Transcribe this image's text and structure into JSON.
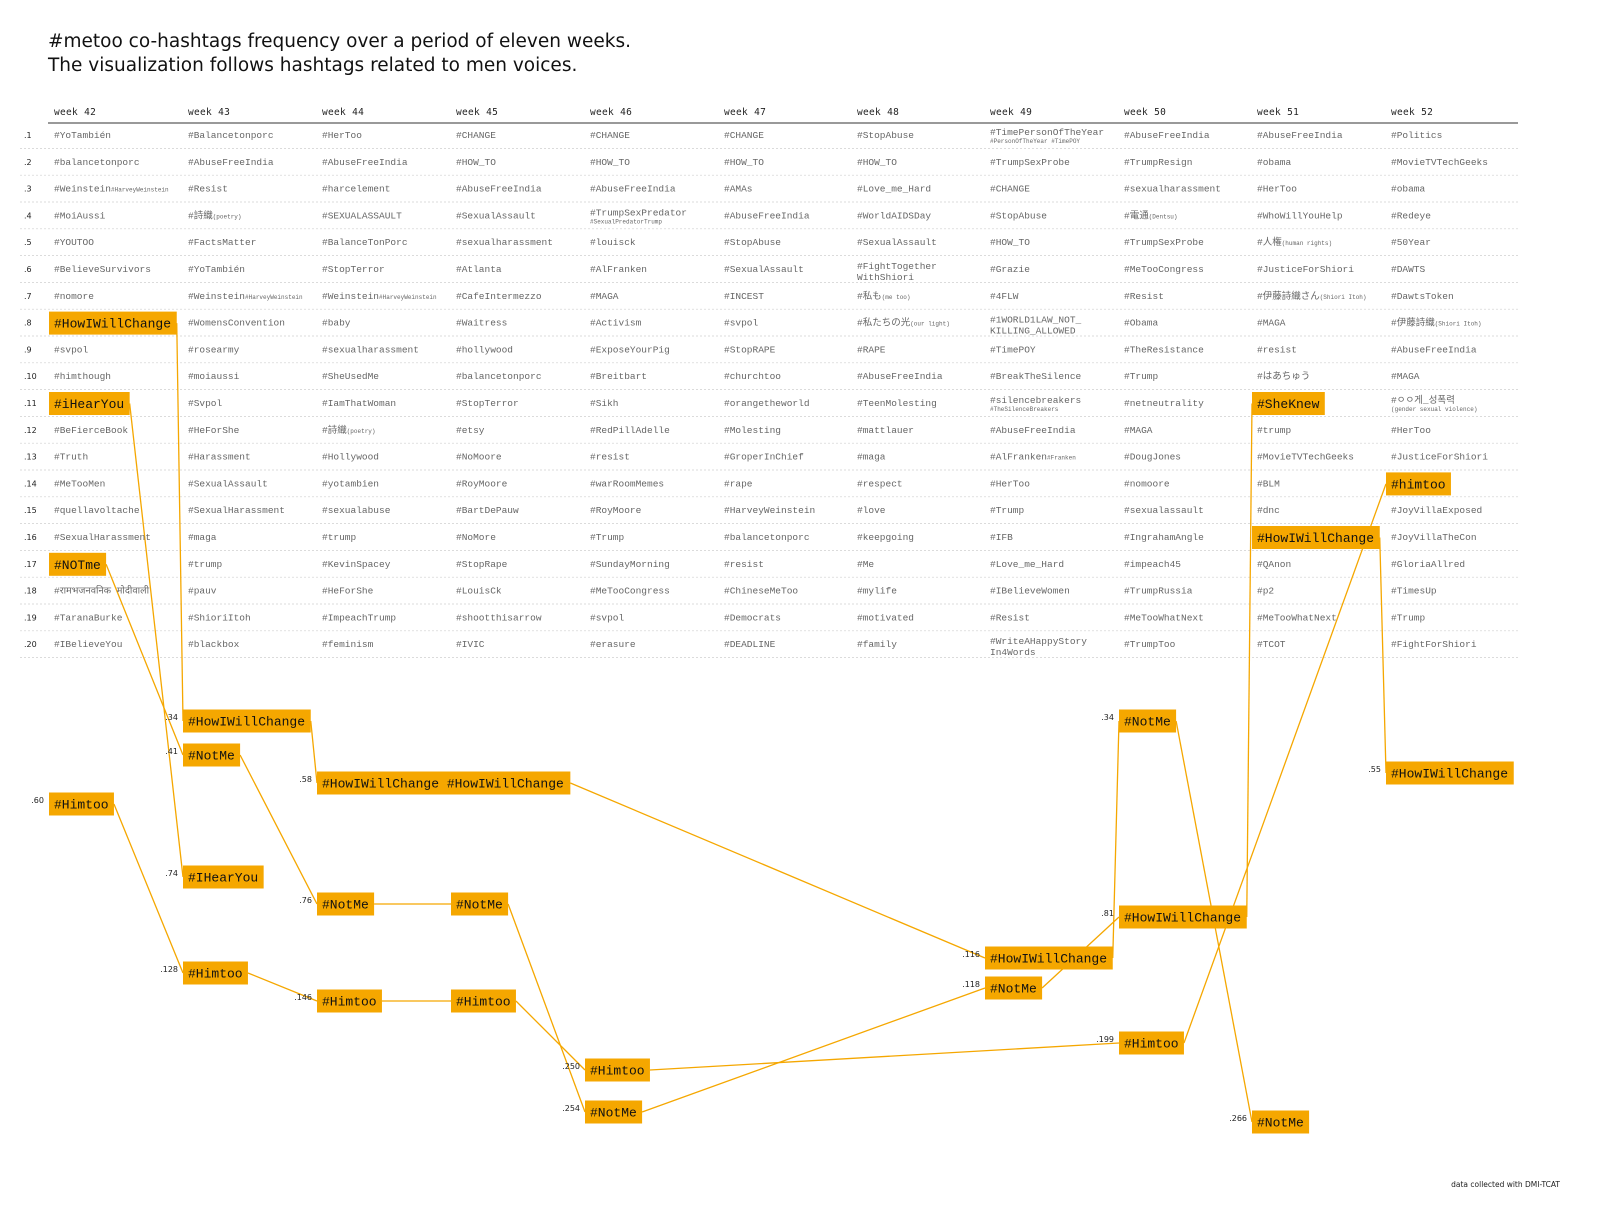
{
  "title_lines": [
    "#metoo co-hashtags frequency over a period of eleven weeks.",
    "The visualization follows hashtags related to men voices."
  ],
  "credit": "data collected with DMI-TCAT",
  "accent_color": "#f5a700",
  "chart_data": {
    "type": "table",
    "weeks": [
      "week 42",
      "week 43",
      "week 44",
      "week 45",
      "week 46",
      "week 47",
      "week 48",
      "week 49",
      "week 50",
      "week 51",
      "week 52"
    ],
    "rank_labels": [
      ".1",
      ".2",
      ".3",
      ".4",
      ".5",
      ".6",
      ".7",
      ".8",
      ".9",
      ".10",
      ".11",
      ".12",
      ".13",
      ".14",
      ".15",
      ".16",
      ".17",
      ".18",
      ".19",
      ".20"
    ],
    "columns": [
      [
        {
          "t": "#YoTambién"
        },
        {
          "t": "#balancetonporc"
        },
        {
          "t": "#Weinstein",
          "s": "#HarveyWeinstein"
        },
        {
          "t": "#MoiAussi"
        },
        {
          "t": "#YOUTOO"
        },
        {
          "t": "#BelieveSurvivors"
        },
        {
          "t": "#nomore"
        },
        {
          "t": "#HowIWillChange",
          "hl": true
        },
        {
          "t": "#svpol"
        },
        {
          "t": "#himthough"
        },
        {
          "t": "#iHearYou",
          "hl": true
        },
        {
          "t": "#BeFierceBook"
        },
        {
          "t": "#Truth"
        },
        {
          "t": "#MeTooMen"
        },
        {
          "t": "#quellavoltache"
        },
        {
          "t": "#SexualHarassment"
        },
        {
          "t": "#NOTme",
          "hl": true
        },
        {
          "t": "#रामभजनवनिक मोदीवाली"
        },
        {
          "t": "#TaranaBurke"
        },
        {
          "t": "#IBelieveYou"
        }
      ],
      [
        {
          "t": "#Balancetonporc"
        },
        {
          "t": "#AbuseFreeIndia"
        },
        {
          "t": "#Resist"
        },
        {
          "t": "#詩織",
          "s": "(poetry)"
        },
        {
          "t": "#FactsMatter"
        },
        {
          "t": "#YoTambién"
        },
        {
          "t": "#Weinstein",
          "s": "#HarveyWeinstein"
        },
        {
          "t": "#WomensConvention"
        },
        {
          "t": "#rosearmy"
        },
        {
          "t": "#moiaussi"
        },
        {
          "t": "#Svpol"
        },
        {
          "t": "#HeForShe"
        },
        {
          "t": "#Harassment"
        },
        {
          "t": "#SexualAssault"
        },
        {
          "t": "#SexualHarassment"
        },
        {
          "t": "#maga"
        },
        {
          "t": "#trump"
        },
        {
          "t": "#pauv"
        },
        {
          "t": "#ShioriItoh"
        },
        {
          "t": "#blackbox"
        }
      ],
      [
        {
          "t": "#HerToo"
        },
        {
          "t": "#AbuseFreeIndia"
        },
        {
          "t": "#harcelement"
        },
        {
          "t": "#SEXUALASSAULT"
        },
        {
          "t": "#BalanceTonPorc"
        },
        {
          "t": "#StopTerror"
        },
        {
          "t": "#Weinstein",
          "s": "#HarveyWeinstein"
        },
        {
          "t": "#baby"
        },
        {
          "t": "#sexualharassment"
        },
        {
          "t": "#SheUsedMe"
        },
        {
          "t": "#IamThatWoman"
        },
        {
          "t": "#詩織",
          "s": "(poetry)"
        },
        {
          "t": "#Hollywood"
        },
        {
          "t": "#yotambien"
        },
        {
          "t": "#sexualabuse"
        },
        {
          "t": "#trump"
        },
        {
          "t": "#KevinSpacey"
        },
        {
          "t": "#HeForShe"
        },
        {
          "t": "#ImpeachTrump"
        },
        {
          "t": "#feminism"
        }
      ],
      [
        {
          "t": "#CHANGE"
        },
        {
          "t": "#HOW_TO"
        },
        {
          "t": "#AbuseFreeIndia"
        },
        {
          "t": "#SexualAssault"
        },
        {
          "t": "#sexualharassment"
        },
        {
          "t": "#Atlanta"
        },
        {
          "t": "#CafeIntermezzo"
        },
        {
          "t": "#Waitress"
        },
        {
          "t": "#hollywood"
        },
        {
          "t": "#balancetonporc"
        },
        {
          "t": "#StopTerror"
        },
        {
          "t": "#etsy"
        },
        {
          "t": "#NoMoore"
        },
        {
          "t": "#RoyMoore"
        },
        {
          "t": "#BartDePauw"
        },
        {
          "t": "#NoMore"
        },
        {
          "t": "#StopRape"
        },
        {
          "t": "#LouisCk"
        },
        {
          "t": "#shootthisarrow"
        },
        {
          "t": "#IVIC"
        }
      ],
      [
        {
          "t": "#CHANGE"
        },
        {
          "t": "#HOW_TO"
        },
        {
          "t": "#AbuseFreeIndia"
        },
        {
          "t": "#TrumpSexPredator",
          "s2": "#SexualPredatorTrump"
        },
        {
          "t": "#louisck"
        },
        {
          "t": "#AlFranken"
        },
        {
          "t": "#MAGA"
        },
        {
          "t": "#Activism"
        },
        {
          "t": "#ExposeYourPig"
        },
        {
          "t": "#Breitbart"
        },
        {
          "t": "#Sikh"
        },
        {
          "t": "#RedPillAdelle"
        },
        {
          "t": "#resist"
        },
        {
          "t": "#warRoomMemes"
        },
        {
          "t": "#RoyMoore"
        },
        {
          "t": "#Trump"
        },
        {
          "t": "#SundayMorning"
        },
        {
          "t": "#MeTooCongress"
        },
        {
          "t": "#svpol"
        },
        {
          "t": "#erasure"
        }
      ],
      [
        {
          "t": "#CHANGE"
        },
        {
          "t": "#HOW_TO"
        },
        {
          "t": "#AMAs"
        },
        {
          "t": "#AbuseFreeIndia"
        },
        {
          "t": "#StopAbuse"
        },
        {
          "t": "#SexualAssault"
        },
        {
          "t": "#INCEST"
        },
        {
          "t": "#svpol"
        },
        {
          "t": "#StopRAPE"
        },
        {
          "t": "#churchtoo"
        },
        {
          "t": "#orangetheworld"
        },
        {
          "t": "#Molesting"
        },
        {
          "t": "#GroperInChief"
        },
        {
          "t": "#rape"
        },
        {
          "t": "#HarveyWeinstein"
        },
        {
          "t": "#balancetonporc"
        },
        {
          "t": "#resist"
        },
        {
          "t": "#ChineseMeToo"
        },
        {
          "t": "#Democrats"
        },
        {
          "t": "#DEADLINE"
        }
      ],
      [
        {
          "t": "#StopAbuse"
        },
        {
          "t": "#HOW_TO"
        },
        {
          "t": "#Love_me_Hard"
        },
        {
          "t": "#WorldAIDSDay"
        },
        {
          "t": "#SexualAssault"
        },
        {
          "t": "#FightTogether",
          "t2": "WithShiori"
        },
        {
          "t": "#私も",
          "s": "(me too)"
        },
        {
          "t": "#私たちの光",
          "s": "(our light)"
        },
        {
          "t": "#RAPE"
        },
        {
          "t": "#AbuseFreeIndia"
        },
        {
          "t": "#TeenMolesting"
        },
        {
          "t": "#mattlauer"
        },
        {
          "t": "#maga"
        },
        {
          "t": "#respect"
        },
        {
          "t": "#love"
        },
        {
          "t": "#keepgoing"
        },
        {
          "t": "#Me"
        },
        {
          "t": "#mylife"
        },
        {
          "t": "#motivated"
        },
        {
          "t": "#family"
        }
      ],
      [
        {
          "t": "#TimePersonOfTheYear",
          "s2": "#PersonOfTheYear #TimePOY"
        },
        {
          "t": "#TrumpSexProbe"
        },
        {
          "t": "#CHANGE"
        },
        {
          "t": "#StopAbuse"
        },
        {
          "t": "#HOW_TO"
        },
        {
          "t": "#Grazie"
        },
        {
          "t": "#4FLW"
        },
        {
          "t": "#1WORLD1LAW_NOT_",
          "t2": "KILLING_ALLOWED"
        },
        {
          "t": "#TimePOY"
        },
        {
          "t": "#BreakTheSilence"
        },
        {
          "t": "#silencebreakers",
          "s2": "#TheSilenceBreakers"
        },
        {
          "t": "#AbuseFreeIndia"
        },
        {
          "t": "#AlFranken",
          "s": "#Franken"
        },
        {
          "t": "#HerToo"
        },
        {
          "t": "#Trump"
        },
        {
          "t": "#IFB"
        },
        {
          "t": "#Love_me_Hard"
        },
        {
          "t": "#IBelieveWomen"
        },
        {
          "t": "#Resist"
        },
        {
          "t": "#WriteAHappyStory",
          "t2": "In4Words"
        }
      ],
      [
        {
          "t": "#AbuseFreeIndia"
        },
        {
          "t": "#TrumpResign"
        },
        {
          "t": "#sexualharassment"
        },
        {
          "t": "#電通",
          "s": "(Dentsu)"
        },
        {
          "t": "#TrumpSexProbe"
        },
        {
          "t": "#MeTooCongress"
        },
        {
          "t": "#Resist"
        },
        {
          "t": "#Obama"
        },
        {
          "t": "#TheResistance"
        },
        {
          "t": "#Trump"
        },
        {
          "t": "#netneutrality"
        },
        {
          "t": "#MAGA"
        },
        {
          "t": "#DougJones"
        },
        {
          "t": "#nomoore"
        },
        {
          "t": "#sexualassault"
        },
        {
          "t": "#IngrahamAngle"
        },
        {
          "t": "#impeach45"
        },
        {
          "t": "#TrumpRussia"
        },
        {
          "t": "#MeTooWhatNext"
        },
        {
          "t": "#TrumpToo"
        }
      ],
      [
        {
          "t": "#AbuseFreeIndia"
        },
        {
          "t": "#obama"
        },
        {
          "t": "#HerToo"
        },
        {
          "t": "#WhoWillYouHelp"
        },
        {
          "t": "#人権",
          "s": "(human rights)"
        },
        {
          "t": "#JusticeForShiori"
        },
        {
          "t": "#伊藤詩織さん",
          "s": "(Shiori Itoh)"
        },
        {
          "t": "#MAGA"
        },
        {
          "t": "#resist"
        },
        {
          "t": "#はあちゅう"
        },
        {
          "t": "#SheKnew",
          "hl": true
        },
        {
          "t": "#trump"
        },
        {
          "t": "#MovieTVTechGeeks"
        },
        {
          "t": "#BLM"
        },
        {
          "t": "#dnc"
        },
        {
          "t": "#HowIWillChange",
          "hl": true
        },
        {
          "t": "#QAnon"
        },
        {
          "t": "#p2"
        },
        {
          "t": "#MeTooWhatNext"
        },
        {
          "t": "#TCOT"
        }
      ],
      [
        {
          "t": "#Politics"
        },
        {
          "t": "#MovieTVTechGeeks"
        },
        {
          "t": "#obama"
        },
        {
          "t": "#Redeye"
        },
        {
          "t": "#50Year"
        },
        {
          "t": "#DAWTS"
        },
        {
          "t": "#DawtsToken"
        },
        {
          "t": "#伊藤詩織",
          "s": "(Shiori Itoh)"
        },
        {
          "t": "#AbuseFreeIndia"
        },
        {
          "t": "#MAGA"
        },
        {
          "t": "#ㅇㅇ게_성폭력",
          "s2": "(gender sexual violence)"
        },
        {
          "t": "#HerToo"
        },
        {
          "t": "#JusticeForShiori"
        },
        {
          "t": "#himtoo",
          "hl": true
        },
        {
          "t": "#JoyVillaExposed"
        },
        {
          "t": "#JoyVillaTheCon"
        },
        {
          "t": "#GloriaAllred"
        },
        {
          "t": "#TimesUp"
        },
        {
          "t": "#Trump"
        },
        {
          "t": "#FightForShiori"
        }
      ]
    ],
    "lower_boxes": [
      {
        "id": "w42_himtoo",
        "week": 0,
        "label": "#Himtoo",
        "value": ".60"
      },
      {
        "id": "w43_how",
        "week": 1,
        "label": "#HowIWillChange",
        "value": ".34"
      },
      {
        "id": "w43_notme",
        "week": 1,
        "label": "#NotMe",
        "value": ".41"
      },
      {
        "id": "w43_ihear",
        "week": 1,
        "label": "#IHearYou",
        "value": ".74"
      },
      {
        "id": "w43_himtoo",
        "week": 1,
        "label": "#Himtoo",
        "value": ".128"
      },
      {
        "id": "w44_how",
        "week": 2,
        "label": "#HowIWillChange #HowIWillChange",
        "value": ".58"
      },
      {
        "id": "w44_notme",
        "week": 2,
        "label": "#NotMe",
        "value": ".76"
      },
      {
        "id": "w44_himtoo",
        "week": 2,
        "label": "#Himtoo",
        "value": ".146"
      },
      {
        "id": "w45_notme",
        "week": 3,
        "label": "#NotMe",
        "value": ""
      },
      {
        "id": "w45_himtoo",
        "week": 3,
        "label": "#Himtoo",
        "value": ""
      },
      {
        "id": "w46_himtoo",
        "week": 4,
        "label": "#Himtoo",
        "value": ".250"
      },
      {
        "id": "w46_notme",
        "week": 4,
        "label": "#NotMe",
        "value": ".254"
      },
      {
        "id": "w49_how",
        "week": 7,
        "label": "#HowIWillChange",
        "value": ".116"
      },
      {
        "id": "w49_notme",
        "week": 7,
        "label": "#NotMe",
        "value": ".118"
      },
      {
        "id": "w50_notme",
        "week": 8,
        "label": "#NotMe",
        "value": ".34"
      },
      {
        "id": "w50_how",
        "week": 8,
        "label": "#HowIWillChange",
        "value": ".81"
      },
      {
        "id": "w50_himtoo",
        "week": 8,
        "label": "#Himtoo",
        "value": ".199"
      },
      {
        "id": "w51_notme",
        "week": 9,
        "label": "#NotMe",
        "value": ".266"
      },
      {
        "id": "w52_how",
        "week": 10,
        "label": "#HowIWillChange",
        "value": ".55"
      }
    ],
    "links": [
      [
        "t0_8",
        "w43_how"
      ],
      [
        "t0_11",
        "w43_ihear"
      ],
      [
        "t0_17",
        "w43_notme"
      ],
      [
        "w42_himtoo",
        "w43_himtoo"
      ],
      [
        "w43_how",
        "w44_how"
      ],
      [
        "w43_notme",
        "w44_notme"
      ],
      [
        "w43_himtoo",
        "w44_himtoo"
      ],
      [
        "w44_notme",
        "w45_notme"
      ],
      [
        "w44_himtoo",
        "w45_himtoo"
      ],
      [
        "w44_how",
        "w49_how"
      ],
      [
        "w45_notme",
        "w46_notme"
      ],
      [
        "w45_himtoo",
        "w46_himtoo"
      ],
      [
        "w46_notme",
        "w49_notme"
      ],
      [
        "w46_himtoo",
        "w50_himtoo"
      ],
      [
        "w49_how",
        "w50_notme"
      ],
      [
        "w49_notme",
        "w50_how"
      ],
      [
        "w50_notme",
        "w51_notme"
      ],
      [
        "w50_how",
        "t9_11"
      ],
      [
        "w50_himtoo",
        "t10_14"
      ],
      [
        "t9_16",
        "w52_how"
      ]
    ]
  }
}
